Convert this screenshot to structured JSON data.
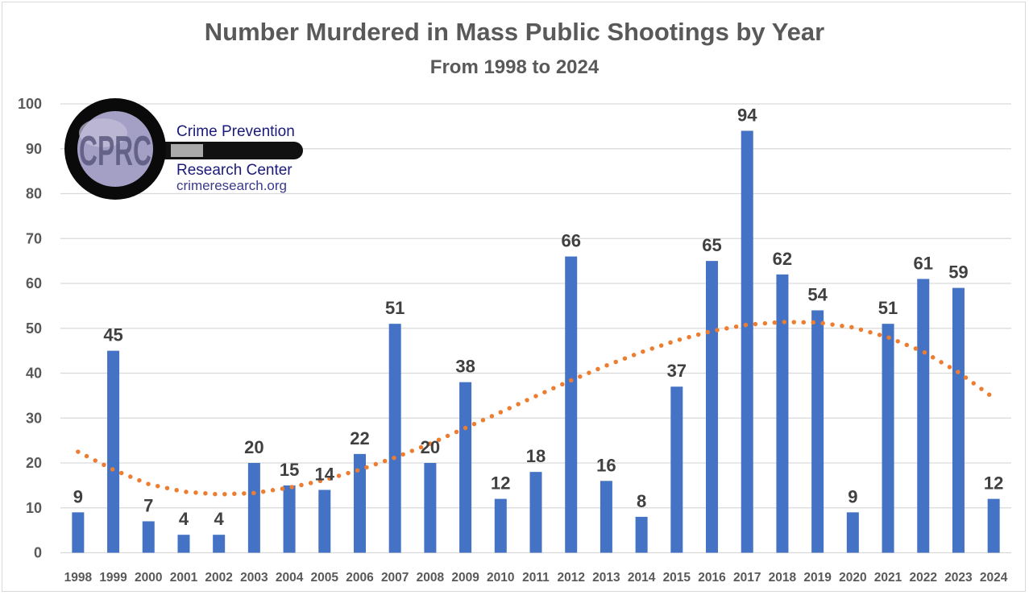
{
  "chart_data": {
    "type": "bar",
    "title": "Number Murdered in Mass Public Shootings by Year",
    "subtitle": "From 1998 to 2024",
    "xlabel": "",
    "ylabel": "",
    "ylim": [
      0,
      100
    ],
    "yticks": [
      0,
      10,
      20,
      30,
      40,
      50,
      60,
      70,
      80,
      90,
      100
    ],
    "grid": true,
    "legend": "none",
    "categories": [
      "1998",
      "1999",
      "2000",
      "2001",
      "2002",
      "2003",
      "2004",
      "2005",
      "2006",
      "2007",
      "2008",
      "2009",
      "2010",
      "2011",
      "2012",
      "2013",
      "2014",
      "2015",
      "2016",
      "2017",
      "2018",
      "2019",
      "2020",
      "2021",
      "2022",
      "2023",
      "2024"
    ],
    "series": [
      {
        "name": "Number Murdered",
        "type": "bar",
        "color": "#4472c4",
        "values": [
          9,
          45,
          7,
          4,
          4,
          20,
          15,
          14,
          22,
          51,
          20,
          38,
          12,
          18,
          66,
          16,
          8,
          37,
          65,
          94,
          62,
          54,
          9,
          51,
          61,
          59,
          12
        ]
      },
      {
        "name": "Polynomial trendline",
        "type": "line",
        "style": "dotted",
        "color": "#ed7d31",
        "values": [
          22.5,
          18.5,
          15.3,
          13.6,
          13,
          13.3,
          14.5,
          16.2,
          18.5,
          21.2,
          24.3,
          27.8,
          31.3,
          34.9,
          38.4,
          41.7,
          44.7,
          47.3,
          49.4,
          50.8,
          51.4,
          51.3,
          50.2,
          48,
          44.8,
          40.2,
          34.5
        ]
      }
    ]
  },
  "logo": {
    "initials": "CPRC",
    "line1": "Crime Prevention",
    "line2": "Research Center",
    "url": "crimeresearch.org"
  }
}
